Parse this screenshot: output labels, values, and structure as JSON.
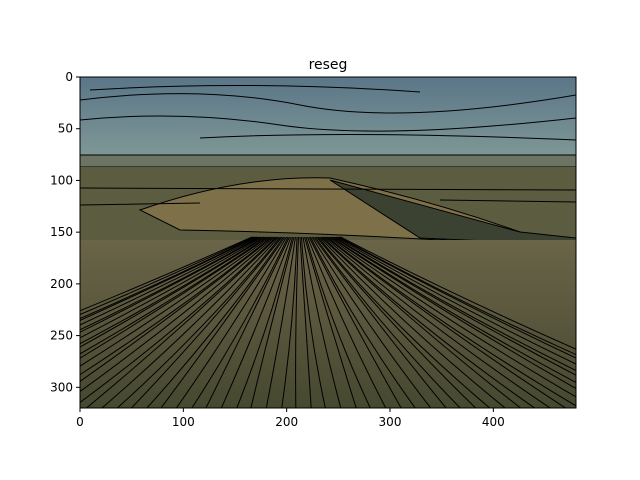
{
  "chart_data": {
    "type": "image",
    "title": "reseg",
    "xlim": [
      0,
      480
    ],
    "xticks": [
      0,
      100,
      200,
      300,
      400
    ],
    "ylim": [
      320,
      0
    ],
    "yticks": [
      0,
      50,
      100,
      150,
      200,
      250,
      300
    ]
  }
}
